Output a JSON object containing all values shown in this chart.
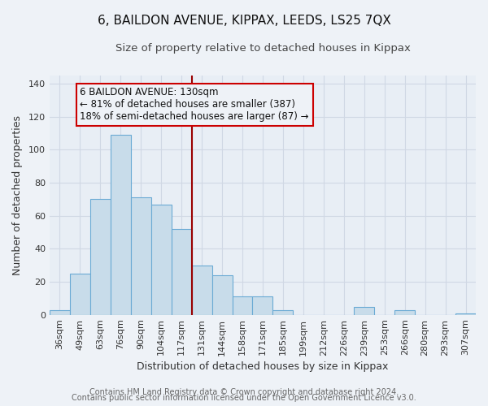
{
  "title": "6, BAILDON AVENUE, KIPPAX, LEEDS, LS25 7QX",
  "subtitle": "Size of property relative to detached houses in Kippax",
  "xlabel": "Distribution of detached houses by size in Kippax",
  "ylabel": "Number of detached properties",
  "bar_labels": [
    "36sqm",
    "49sqm",
    "63sqm",
    "76sqm",
    "90sqm",
    "104sqm",
    "117sqm",
    "131sqm",
    "144sqm",
    "158sqm",
    "171sqm",
    "185sqm",
    "199sqm",
    "212sqm",
    "226sqm",
    "239sqm",
    "253sqm",
    "266sqm",
    "280sqm",
    "293sqm",
    "307sqm"
  ],
  "bar_heights": [
    3,
    25,
    70,
    109,
    71,
    67,
    52,
    30,
    24,
    11,
    11,
    3,
    0,
    0,
    0,
    5,
    0,
    3,
    0,
    0,
    1
  ],
  "bar_color": "#c8dcea",
  "bar_edge_color": "#6aaad4",
  "marker_index": 7,
  "marker_color": "#990000",
  "annotation_line1": "6 BAILDON AVENUE: 130sqm",
  "annotation_line2": "← 81% of detached houses are smaller (387)",
  "annotation_line3": "18% of semi-detached houses are larger (87) →",
  "annotation_box_edge": "#cc0000",
  "ylim": [
    0,
    145
  ],
  "yticks": [
    0,
    20,
    40,
    60,
    80,
    100,
    120,
    140
  ],
  "footer1": "Contains HM Land Registry data © Crown copyright and database right 2024.",
  "footer2": "Contains public sector information licensed under the Open Government Licence v3.0.",
  "bg_color": "#eef2f7",
  "plot_bg_color": "#e8eef5",
  "grid_color": "#d0d8e4",
  "title_fontsize": 11,
  "subtitle_fontsize": 9.5,
  "axis_label_fontsize": 9,
  "tick_fontsize": 8,
  "annotation_fontsize": 8.5,
  "footer_fontsize": 7
}
